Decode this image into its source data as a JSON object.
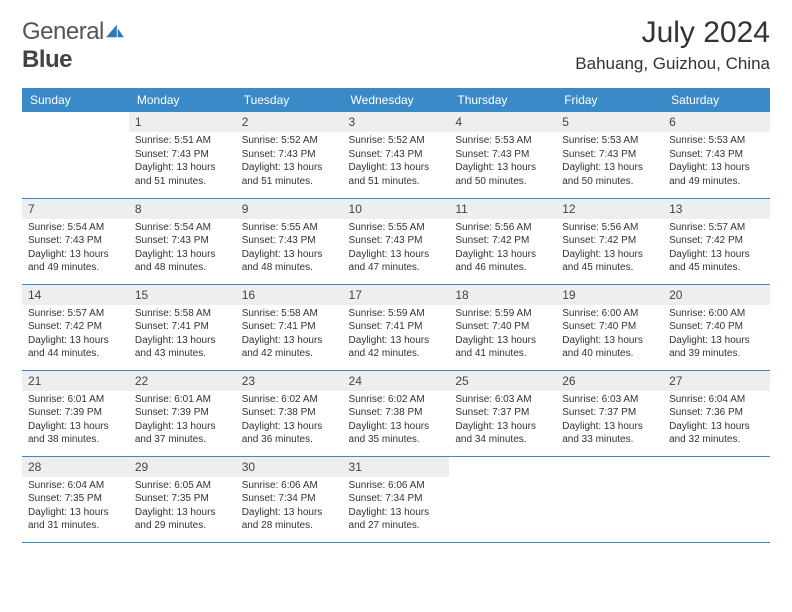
{
  "brand": {
    "part1": "General",
    "part2": "Blue"
  },
  "title": "July 2024",
  "location": "Bahuang, Guizhou, China",
  "colors": {
    "header_bg": "#3a8ac8",
    "header_text": "#ffffff",
    "daynum_bg": "#edeef0",
    "border": "#3a8ac8",
    "page_bg": "#ffffff",
    "text": "#333333",
    "logo_gray": "#555555",
    "logo_blue": "#2e79bb"
  },
  "weekdays": [
    "Sunday",
    "Monday",
    "Tuesday",
    "Wednesday",
    "Thursday",
    "Friday",
    "Saturday"
  ],
  "weeks": [
    [
      {
        "n": "",
        "lines": [
          "",
          "",
          "",
          ""
        ]
      },
      {
        "n": "1",
        "lines": [
          "Sunrise: 5:51 AM",
          "Sunset: 7:43 PM",
          "Daylight: 13 hours",
          "and 51 minutes."
        ]
      },
      {
        "n": "2",
        "lines": [
          "Sunrise: 5:52 AM",
          "Sunset: 7:43 PM",
          "Daylight: 13 hours",
          "and 51 minutes."
        ]
      },
      {
        "n": "3",
        "lines": [
          "Sunrise: 5:52 AM",
          "Sunset: 7:43 PM",
          "Daylight: 13 hours",
          "and 51 minutes."
        ]
      },
      {
        "n": "4",
        "lines": [
          "Sunrise: 5:53 AM",
          "Sunset: 7:43 PM",
          "Daylight: 13 hours",
          "and 50 minutes."
        ]
      },
      {
        "n": "5",
        "lines": [
          "Sunrise: 5:53 AM",
          "Sunset: 7:43 PM",
          "Daylight: 13 hours",
          "and 50 minutes."
        ]
      },
      {
        "n": "6",
        "lines": [
          "Sunrise: 5:53 AM",
          "Sunset: 7:43 PM",
          "Daylight: 13 hours",
          "and 49 minutes."
        ]
      }
    ],
    [
      {
        "n": "7",
        "lines": [
          "Sunrise: 5:54 AM",
          "Sunset: 7:43 PM",
          "Daylight: 13 hours",
          "and 49 minutes."
        ]
      },
      {
        "n": "8",
        "lines": [
          "Sunrise: 5:54 AM",
          "Sunset: 7:43 PM",
          "Daylight: 13 hours",
          "and 48 minutes."
        ]
      },
      {
        "n": "9",
        "lines": [
          "Sunrise: 5:55 AM",
          "Sunset: 7:43 PM",
          "Daylight: 13 hours",
          "and 48 minutes."
        ]
      },
      {
        "n": "10",
        "lines": [
          "Sunrise: 5:55 AM",
          "Sunset: 7:43 PM",
          "Daylight: 13 hours",
          "and 47 minutes."
        ]
      },
      {
        "n": "11",
        "lines": [
          "Sunrise: 5:56 AM",
          "Sunset: 7:42 PM",
          "Daylight: 13 hours",
          "and 46 minutes."
        ]
      },
      {
        "n": "12",
        "lines": [
          "Sunrise: 5:56 AM",
          "Sunset: 7:42 PM",
          "Daylight: 13 hours",
          "and 45 minutes."
        ]
      },
      {
        "n": "13",
        "lines": [
          "Sunrise: 5:57 AM",
          "Sunset: 7:42 PM",
          "Daylight: 13 hours",
          "and 45 minutes."
        ]
      }
    ],
    [
      {
        "n": "14",
        "lines": [
          "Sunrise: 5:57 AM",
          "Sunset: 7:42 PM",
          "Daylight: 13 hours",
          "and 44 minutes."
        ]
      },
      {
        "n": "15",
        "lines": [
          "Sunrise: 5:58 AM",
          "Sunset: 7:41 PM",
          "Daylight: 13 hours",
          "and 43 minutes."
        ]
      },
      {
        "n": "16",
        "lines": [
          "Sunrise: 5:58 AM",
          "Sunset: 7:41 PM",
          "Daylight: 13 hours",
          "and 42 minutes."
        ]
      },
      {
        "n": "17",
        "lines": [
          "Sunrise: 5:59 AM",
          "Sunset: 7:41 PM",
          "Daylight: 13 hours",
          "and 42 minutes."
        ]
      },
      {
        "n": "18",
        "lines": [
          "Sunrise: 5:59 AM",
          "Sunset: 7:40 PM",
          "Daylight: 13 hours",
          "and 41 minutes."
        ]
      },
      {
        "n": "19",
        "lines": [
          "Sunrise: 6:00 AM",
          "Sunset: 7:40 PM",
          "Daylight: 13 hours",
          "and 40 minutes."
        ]
      },
      {
        "n": "20",
        "lines": [
          "Sunrise: 6:00 AM",
          "Sunset: 7:40 PM",
          "Daylight: 13 hours",
          "and 39 minutes."
        ]
      }
    ],
    [
      {
        "n": "21",
        "lines": [
          "Sunrise: 6:01 AM",
          "Sunset: 7:39 PM",
          "Daylight: 13 hours",
          "and 38 minutes."
        ]
      },
      {
        "n": "22",
        "lines": [
          "Sunrise: 6:01 AM",
          "Sunset: 7:39 PM",
          "Daylight: 13 hours",
          "and 37 minutes."
        ]
      },
      {
        "n": "23",
        "lines": [
          "Sunrise: 6:02 AM",
          "Sunset: 7:38 PM",
          "Daylight: 13 hours",
          "and 36 minutes."
        ]
      },
      {
        "n": "24",
        "lines": [
          "Sunrise: 6:02 AM",
          "Sunset: 7:38 PM",
          "Daylight: 13 hours",
          "and 35 minutes."
        ]
      },
      {
        "n": "25",
        "lines": [
          "Sunrise: 6:03 AM",
          "Sunset: 7:37 PM",
          "Daylight: 13 hours",
          "and 34 minutes."
        ]
      },
      {
        "n": "26",
        "lines": [
          "Sunrise: 6:03 AM",
          "Sunset: 7:37 PM",
          "Daylight: 13 hours",
          "and 33 minutes."
        ]
      },
      {
        "n": "27",
        "lines": [
          "Sunrise: 6:04 AM",
          "Sunset: 7:36 PM",
          "Daylight: 13 hours",
          "and 32 minutes."
        ]
      }
    ],
    [
      {
        "n": "28",
        "lines": [
          "Sunrise: 6:04 AM",
          "Sunset: 7:35 PM",
          "Daylight: 13 hours",
          "and 31 minutes."
        ]
      },
      {
        "n": "29",
        "lines": [
          "Sunrise: 6:05 AM",
          "Sunset: 7:35 PM",
          "Daylight: 13 hours",
          "and 29 minutes."
        ]
      },
      {
        "n": "30",
        "lines": [
          "Sunrise: 6:06 AM",
          "Sunset: 7:34 PM",
          "Daylight: 13 hours",
          "and 28 minutes."
        ]
      },
      {
        "n": "31",
        "lines": [
          "Sunrise: 6:06 AM",
          "Sunset: 7:34 PM",
          "Daylight: 13 hours",
          "and 27 minutes."
        ]
      },
      {
        "n": "",
        "lines": [
          "",
          "",
          "",
          ""
        ]
      },
      {
        "n": "",
        "lines": [
          "",
          "",
          "",
          ""
        ]
      },
      {
        "n": "",
        "lines": [
          "",
          "",
          "",
          ""
        ]
      }
    ]
  ]
}
